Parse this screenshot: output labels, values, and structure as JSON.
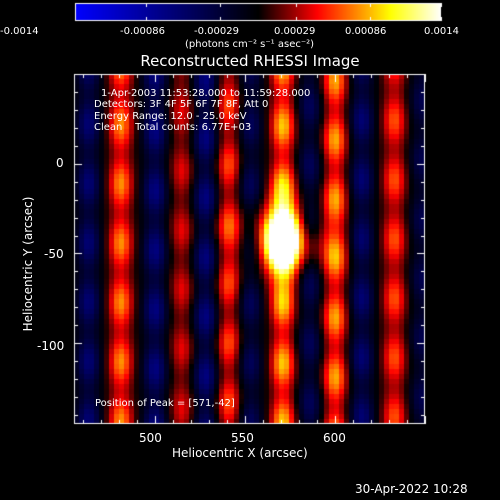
{
  "colorbar": {
    "ticks": [
      "-0.0014",
      "-0.00086",
      "-0.00029",
      "0.00029",
      "0.00086",
      "0.0014"
    ],
    "tick_values": [
      -0.0014,
      -0.00086,
      -0.00029,
      0.00029,
      0.00086,
      0.0014
    ],
    "range": [
      -0.0014,
      0.0014
    ],
    "colormap": [
      "#0000ff",
      "#000000",
      "#ff0000",
      "#ffff00",
      "#ffffff"
    ]
  },
  "units_label": "(photons cm⁻² s⁻¹ asec⁻²)",
  "title": "Reconstructed RHESSI Image",
  "info": {
    "time_range": "1-Apr-2003 11:53:28.000 to 11:59:28.000",
    "detectors": "Detectors: 3F 4F 5F 6F 7F 8F, Att 0",
    "energy_range": "Energy Range: 12.0 - 25.0 keV",
    "method_counts": "Clean    Total counts: 6.77E+03"
  },
  "peak_label": "Position of Peak = [571,-42]",
  "footer_timestamp": "30-Apr-2022 10:28",
  "chart_data": {
    "type": "heatmap",
    "title": "Reconstructed RHESSI Image",
    "xlabel": "Heliocentric X (arcsec)",
    "ylabel": "Heliocentric Y (arcsec)",
    "xlim": [
      455,
      650
    ],
    "ylim": [
      -145,
      50
    ],
    "x_ticks": [
      500,
      550,
      600
    ],
    "y_ticks": [
      0,
      -50,
      -100
    ],
    "peak": {
      "x": 571,
      "y": -42
    },
    "value_range": [
      -0.0014,
      0.0014
    ],
    "vertical_bands": [
      {
        "x": 463,
        "amplitude": -0.45
      },
      {
        "x": 481,
        "amplitude": 0.55
      },
      {
        "x": 500,
        "amplitude": -0.5
      },
      {
        "x": 515,
        "amplitude": 0.3
      },
      {
        "x": 528,
        "amplitude": -0.5
      },
      {
        "x": 541,
        "amplitude": 0.45
      },
      {
        "x": 553,
        "amplitude": -0.35
      },
      {
        "x": 571,
        "amplitude": 0.65
      },
      {
        "x": 586,
        "amplitude": -0.35
      },
      {
        "x": 600,
        "amplitude": 0.6
      },
      {
        "x": 615,
        "amplitude": -0.45
      },
      {
        "x": 633,
        "amplitude": 0.45
      },
      {
        "x": 648,
        "amplitude": -0.3
      }
    ]
  }
}
